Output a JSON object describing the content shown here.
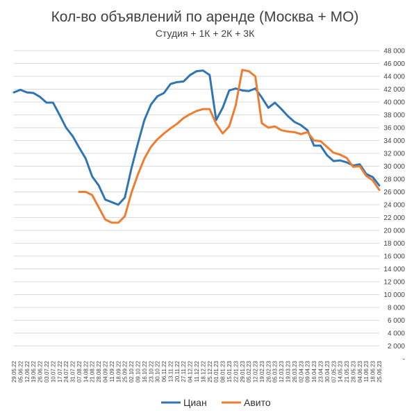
{
  "chart_data": {
    "type": "line",
    "title": "Кол-во объявлений по аренде (Москва + МО)",
    "subtitle": "Студия + 1К + 2К + 3К",
    "xlabel": "",
    "ylabel": "",
    "ylim": [
      0,
      48000
    ],
    "y_ticks": [
      {
        "value": 0,
        "label": "-"
      },
      {
        "value": 2000,
        "label": "2 000"
      },
      {
        "value": 4000,
        "label": "4 000"
      },
      {
        "value": 6000,
        "label": "6 000"
      },
      {
        "value": 8000,
        "label": "8 000"
      },
      {
        "value": 10000,
        "label": "10 000"
      },
      {
        "value": 12000,
        "label": "12 000"
      },
      {
        "value": 14000,
        "label": "14 000"
      },
      {
        "value": 16000,
        "label": "16 000"
      },
      {
        "value": 18000,
        "label": "18 000"
      },
      {
        "value": 20000,
        "label": "20 000"
      },
      {
        "value": 22000,
        "label": "22 000"
      },
      {
        "value": 24000,
        "label": "24 000"
      },
      {
        "value": 26000,
        "label": "26 000"
      },
      {
        "value": 28000,
        "label": "28 000"
      },
      {
        "value": 30000,
        "label": "30 000"
      },
      {
        "value": 32000,
        "label": "32 000"
      },
      {
        "value": 34000,
        "label": "34 000"
      },
      {
        "value": 36000,
        "label": "36 000"
      },
      {
        "value": 38000,
        "label": "38 000"
      },
      {
        "value": 40000,
        "label": "40 000"
      },
      {
        "value": 42000,
        "label": "42 000"
      },
      {
        "value": 44000,
        "label": "44 000"
      },
      {
        "value": 46000,
        "label": "46 000"
      },
      {
        "value": 48000,
        "label": "48 000"
      }
    ],
    "categories": [
      "29.05.22",
      "05.06.22",
      "12.06.22",
      "19.06.22",
      "26.06.22",
      "03.07.22",
      "10.07.22",
      "17.07.22",
      "24.07.22",
      "31.07.22",
      "07.08.22",
      "14.08.22",
      "21.08.22",
      "28.08.22",
      "04.09.22",
      "11.09.22",
      "18.09.22",
      "25.09.22",
      "02.10.22",
      "09.10.22",
      "16.10.22",
      "23.10.22",
      "30.10.22",
      "06.11.22",
      "13.11.22",
      "20.11.22",
      "27.11.22",
      "04.12.22",
      "11.12.22",
      "18.12.22",
      "25.12.22",
      "01.01.23",
      "08.01.23",
      "15.01.23",
      "22.01.23",
      "29.01.23",
      "05.02.23",
      "12.02.23",
      "19.02.23",
      "26.02.23",
      "05.03.23",
      "12.03.23",
      "19.03.23",
      "26.03.23",
      "02.04.23",
      "09.04.23",
      "16.04.23",
      "23.04.23",
      "30.04.23",
      "07.05.23",
      "14.05.23",
      "21.05.23",
      "28.05.23",
      "04.06.23",
      "11.06.23",
      "18.06.23",
      "25.06.23"
    ],
    "series": [
      {
        "name": "Циан",
        "color": "#2E75B6",
        "values": [
          41500,
          41900,
          41500,
          41400,
          40800,
          39900,
          39900,
          38000,
          36000,
          34700,
          32900,
          31200,
          28400,
          27000,
          24800,
          24400,
          24000,
          25100,
          29600,
          33500,
          37200,
          39600,
          40900,
          41400,
          42800,
          43100,
          43200,
          44200,
          44800,
          44900,
          44200,
          37200,
          39100,
          41800,
          42100,
          41800,
          41700,
          42100,
          40700,
          39100,
          39900,
          38900,
          37800,
          36900,
          36400,
          35600,
          33200,
          33200,
          31700,
          30800,
          30900,
          30600,
          30100,
          30300,
          28800,
          28300,
          27000
        ]
      },
      {
        "name": "Авито",
        "color": "#ED7D31",
        "values": [
          null,
          null,
          null,
          null,
          null,
          null,
          null,
          null,
          null,
          null,
          26000,
          26000,
          25500,
          23600,
          21700,
          21200,
          21200,
          22200,
          25800,
          28700,
          31200,
          33000,
          34200,
          35100,
          35900,
          36600,
          37500,
          38100,
          38600,
          38900,
          38900,
          36600,
          35100,
          36200,
          39500,
          45000,
          44800,
          44000,
          36700,
          36000,
          36200,
          35600,
          35400,
          35300,
          35000,
          35300,
          34000,
          33900,
          33000,
          32100,
          31800,
          31300,
          29900,
          30000,
          28500,
          27800,
          26300
        ]
      }
    ],
    "legend_position": "bottom",
    "grid": true
  }
}
